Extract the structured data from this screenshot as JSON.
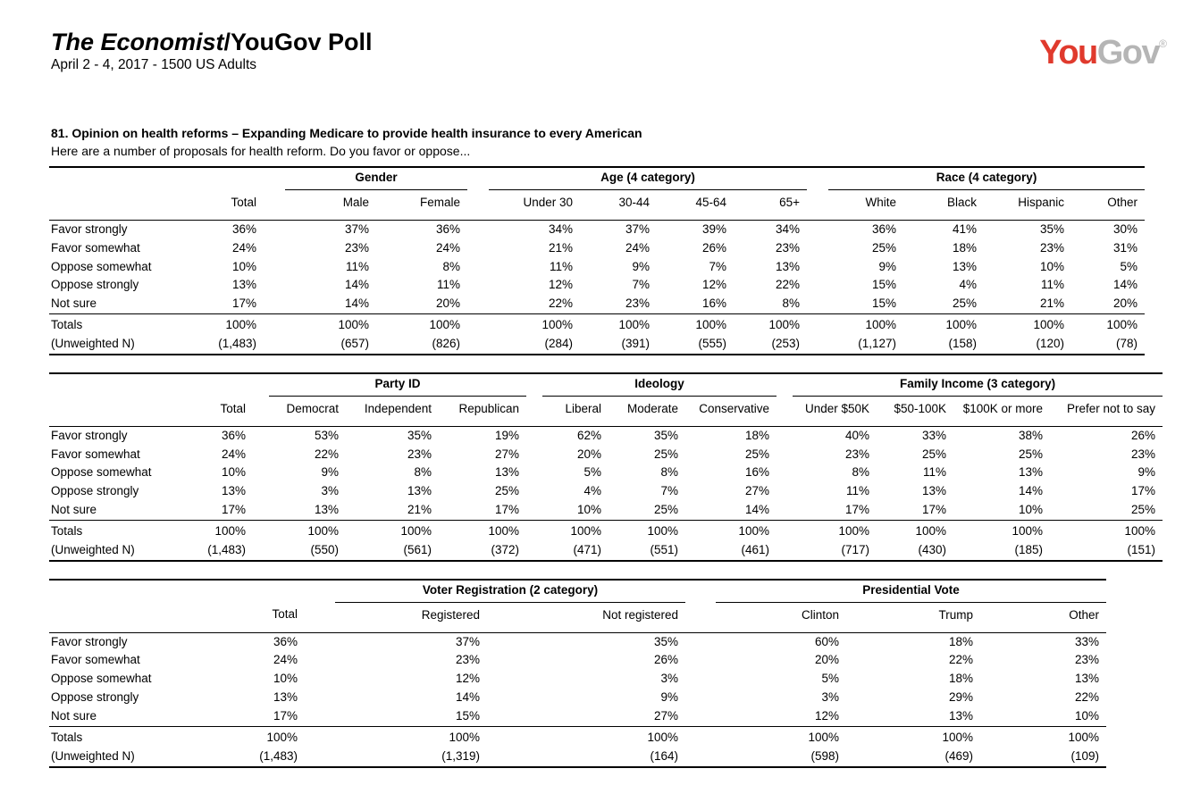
{
  "header": {
    "title_italic": "The Economist",
    "title_rest": "/YouGov Poll",
    "subtitle": "April 2 - 4, 2017 - 1500 US Adults",
    "logo": {
      "you": "You",
      "gov": "Gov",
      "reg": "®",
      "you_color": "#e03a2d",
      "gov_color": "#b5b5b5"
    }
  },
  "question": {
    "number_line": "81. Opinion on health reforms – Expanding Medicare to provide health insurance to every American",
    "prompt": "Here are a number of proposals for health reform. Do you favor or oppose..."
  },
  "totals_label": "Totals",
  "unweighted_label": "(Unweighted N)",
  "tables": [
    {
      "segments": [
        {
          "group": "",
          "columns": [
            "Total"
          ]
        },
        {
          "group": "Gender",
          "columns": [
            "Male",
            "Female"
          ]
        },
        {
          "group": "Age (4 category)",
          "columns": [
            "Under 30",
            "30-44",
            "45-64",
            "65+"
          ]
        },
        {
          "group": "Race (4 category)",
          "columns": [
            "White",
            "Black",
            "Hispanic",
            "Other"
          ]
        }
      ],
      "rows": [
        {
          "label": "Favor strongly",
          "values": [
            "36%",
            "37%",
            "36%",
            "34%",
            "37%",
            "39%",
            "34%",
            "36%",
            "41%",
            "35%",
            "30%"
          ]
        },
        {
          "label": "Favor somewhat",
          "values": [
            "24%",
            "23%",
            "24%",
            "21%",
            "24%",
            "26%",
            "23%",
            "25%",
            "18%",
            "23%",
            "31%"
          ]
        },
        {
          "label": "Oppose somewhat",
          "values": [
            "10%",
            "11%",
            "8%",
            "11%",
            "9%",
            "7%",
            "13%",
            "9%",
            "13%",
            "10%",
            "5%"
          ]
        },
        {
          "label": "Oppose strongly",
          "values": [
            "13%",
            "14%",
            "11%",
            "12%",
            "7%",
            "12%",
            "22%",
            "15%",
            "4%",
            "11%",
            "14%"
          ]
        },
        {
          "label": "Not sure",
          "values": [
            "17%",
            "14%",
            "20%",
            "22%",
            "23%",
            "16%",
            "8%",
            "15%",
            "25%",
            "21%",
            "20%"
          ]
        }
      ],
      "totals": [
        "100%",
        "100%",
        "100%",
        "100%",
        "100%",
        "100%",
        "100%",
        "100%",
        "100%",
        "100%",
        "100%"
      ],
      "unweighted": [
        "(1,483)",
        "(657)",
        "(826)",
        "(284)",
        "(391)",
        "(555)",
        "(253)",
        "(1,127)",
        "(158)",
        "(120)",
        "(78)"
      ]
    },
    {
      "segments": [
        {
          "group": "",
          "columns": [
            "Total"
          ]
        },
        {
          "group": "Party ID",
          "columns": [
            "Democrat",
            "Independent",
            "Republican"
          ]
        },
        {
          "group": "Ideology",
          "columns": [
            "Liberal",
            "Moderate",
            "Conservative"
          ]
        },
        {
          "group": "Family Income (3 category)",
          "columns": [
            "Under $50K",
            "$50-100K",
            "$100K or more",
            "Prefer not to say"
          ]
        }
      ],
      "rows": [
        {
          "label": "Favor strongly",
          "values": [
            "36%",
            "53%",
            "35%",
            "19%",
            "62%",
            "35%",
            "18%",
            "40%",
            "33%",
            "38%",
            "26%"
          ]
        },
        {
          "label": "Favor somewhat",
          "values": [
            "24%",
            "22%",
            "23%",
            "27%",
            "20%",
            "25%",
            "25%",
            "23%",
            "25%",
            "25%",
            "23%"
          ]
        },
        {
          "label": "Oppose somewhat",
          "values": [
            "10%",
            "9%",
            "8%",
            "13%",
            "5%",
            "8%",
            "16%",
            "8%",
            "11%",
            "13%",
            "9%"
          ]
        },
        {
          "label": "Oppose strongly",
          "values": [
            "13%",
            "3%",
            "13%",
            "25%",
            "4%",
            "7%",
            "27%",
            "11%",
            "13%",
            "14%",
            "17%"
          ]
        },
        {
          "label": "Not sure",
          "values": [
            "17%",
            "13%",
            "21%",
            "17%",
            "10%",
            "25%",
            "14%",
            "17%",
            "17%",
            "10%",
            "25%"
          ]
        }
      ],
      "totals": [
        "100%",
        "100%",
        "100%",
        "100%",
        "100%",
        "100%",
        "100%",
        "100%",
        "100%",
        "100%",
        "100%"
      ],
      "unweighted": [
        "(1,483)",
        "(550)",
        "(561)",
        "(372)",
        "(471)",
        "(551)",
        "(461)",
        "(717)",
        "(430)",
        "(185)",
        "(151)"
      ]
    },
    {
      "segments": [
        {
          "group": "",
          "columns": [
            "Total"
          ]
        },
        {
          "group": "Voter Registration (2 category)",
          "columns": [
            "Registered",
            "Not registered"
          ]
        },
        {
          "group": "Presidential Vote",
          "columns": [
            "Clinton",
            "Trump",
            "Other"
          ]
        }
      ],
      "rows": [
        {
          "label": "Favor strongly",
          "values": [
            "36%",
            "37%",
            "35%",
            "60%",
            "18%",
            "33%"
          ]
        },
        {
          "label": "Favor somewhat",
          "values": [
            "24%",
            "23%",
            "26%",
            "20%",
            "22%",
            "23%"
          ]
        },
        {
          "label": "Oppose somewhat",
          "values": [
            "10%",
            "12%",
            "3%",
            "5%",
            "18%",
            "13%"
          ]
        },
        {
          "label": "Oppose strongly",
          "values": [
            "13%",
            "14%",
            "9%",
            "3%",
            "29%",
            "22%"
          ]
        },
        {
          "label": "Not sure",
          "values": [
            "17%",
            "15%",
            "27%",
            "12%",
            "13%",
            "10%"
          ]
        }
      ],
      "totals": [
        "100%",
        "100%",
        "100%",
        "100%",
        "100%",
        "100%"
      ],
      "unweighted": [
        "(1,483)",
        "(1,319)",
        "(164)",
        "(598)",
        "(469)",
        "(109)"
      ]
    }
  ]
}
